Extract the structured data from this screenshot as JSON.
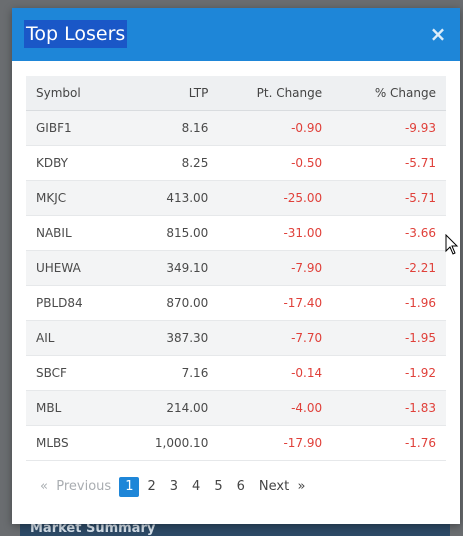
{
  "background": {
    "strip_label": "Market Summary"
  },
  "modal": {
    "title": "Top Losers",
    "close_glyph": "×",
    "columns": [
      "Symbol",
      "LTP",
      "Pt. Change",
      "% Change"
    ],
    "rows": [
      {
        "symbol": "GIBF1",
        "ltp": "8.16",
        "pt": "-0.90",
        "pct": "-9.93"
      },
      {
        "symbol": "KDBY",
        "ltp": "8.25",
        "pt": "-0.50",
        "pct": "-5.71"
      },
      {
        "symbol": "MKJC",
        "ltp": "413.00",
        "pt": "-25.00",
        "pct": "-5.71"
      },
      {
        "symbol": "NABIL",
        "ltp": "815.00",
        "pt": "-31.00",
        "pct": "-3.66"
      },
      {
        "symbol": "UHEWA",
        "ltp": "349.10",
        "pt": "-7.90",
        "pct": "-2.21"
      },
      {
        "symbol": "PBLD84",
        "ltp": "870.00",
        "pt": "-17.40",
        "pct": "-1.96"
      },
      {
        "symbol": "AIL",
        "ltp": "387.30",
        "pt": "-7.70",
        "pct": "-1.95"
      },
      {
        "symbol": "SBCF",
        "ltp": "7.16",
        "pt": "-0.14",
        "pct": "-1.92"
      },
      {
        "symbol": "MBL",
        "ltp": "214.00",
        "pt": "-4.00",
        "pct": "-1.83"
      },
      {
        "symbol": "MLBS",
        "ltp": "1,000.10",
        "pt": "-17.90",
        "pct": "-1.76"
      }
    ],
    "pagination": {
      "prev_glyph": "«",
      "prev_label": "Previous",
      "pages": [
        "1",
        "2",
        "3",
        "4",
        "5",
        "6"
      ],
      "active_page": "1",
      "next_label": "Next",
      "next_glyph": "»"
    }
  },
  "colors": {
    "header": "#1e86d8",
    "negative": "#e0403a",
    "active_page": "#1e86d8"
  }
}
